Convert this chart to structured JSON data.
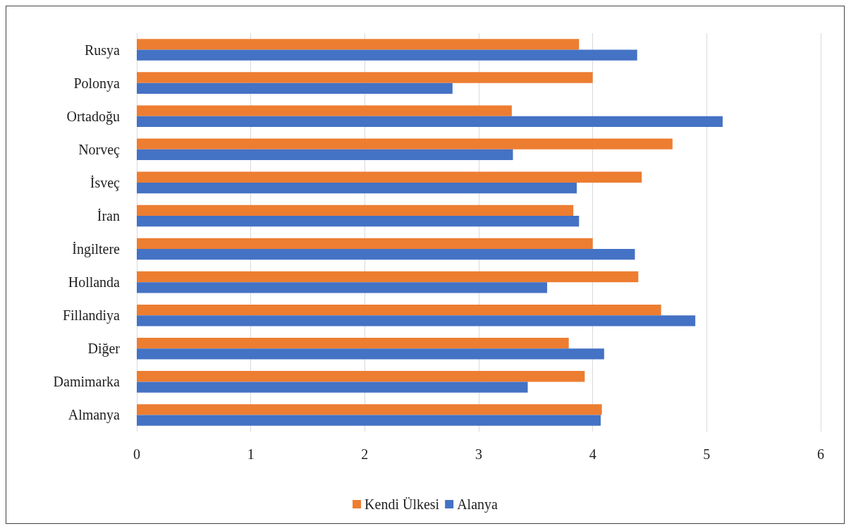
{
  "chart_data": {
    "type": "bar",
    "orientation": "horizontal",
    "categories": [
      "Rusya",
      "Polonya",
      "Ortadoğu",
      "Norveç",
      "İsveç",
      "İran",
      "İngiltere",
      "Hollanda",
      "Fillandiya",
      "Diğer",
      "Damimarka",
      "Almanya"
    ],
    "series": [
      {
        "name": "Kendi Ülkesi",
        "color": "#ed7d31",
        "values": [
          3.88,
          4.0,
          3.29,
          4.7,
          4.43,
          3.83,
          4.0,
          4.4,
          4.6,
          3.79,
          3.93,
          4.08
        ]
      },
      {
        "name": "Alanya",
        "color": "#4472c4",
        "values": [
          4.39,
          2.77,
          5.14,
          3.3,
          3.86,
          3.88,
          4.37,
          3.6,
          4.9,
          4.1,
          3.43,
          4.07
        ]
      }
    ],
    "xlim": [
      0,
      6
    ],
    "xticks": [
      0,
      1,
      2,
      3,
      4,
      5,
      6
    ],
    "grid": "x",
    "legend": "bottom"
  }
}
